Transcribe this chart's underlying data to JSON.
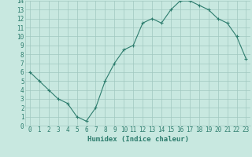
{
  "x": [
    0,
    1,
    2,
    3,
    4,
    5,
    6,
    7,
    8,
    9,
    10,
    11,
    12,
    13,
    14,
    15,
    16,
    17,
    18,
    19,
    20,
    21,
    22,
    23
  ],
  "y": [
    6,
    5,
    4,
    3,
    2.5,
    1,
    0.5,
    2,
    5,
    7,
    8.5,
    9,
    11.5,
    12,
    11.5,
    13,
    14,
    14,
    13.5,
    13,
    12,
    11.5,
    10,
    7.5
  ],
  "line_color": "#2e7d6e",
  "marker": "+",
  "marker_color": "#2e7d6e",
  "bg_color": "#c8e8e0",
  "grid_color": "#a0c8c0",
  "xlabel": "Humidex (Indice chaleur)",
  "xlim": [
    -0.5,
    23.5
  ],
  "ylim": [
    0,
    14
  ],
  "xticks": [
    0,
    1,
    2,
    3,
    4,
    5,
    6,
    7,
    8,
    9,
    10,
    11,
    12,
    13,
    14,
    15,
    16,
    17,
    18,
    19,
    20,
    21,
    22,
    23
  ],
  "yticks": [
    0,
    1,
    2,
    3,
    4,
    5,
    6,
    7,
    8,
    9,
    10,
    11,
    12,
    13,
    14
  ],
  "xlabel_fontsize": 6.5,
  "tick_fontsize": 5.5,
  "tick_color": "#2e7d6e",
  "xlabel_color": "#2e7d6e"
}
